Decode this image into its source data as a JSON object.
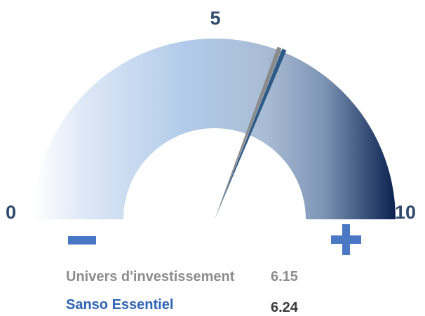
{
  "chart_data": {
    "type": "gauge",
    "min": 0,
    "max": 10,
    "ticks": [
      {
        "label": "0",
        "value": 0
      },
      {
        "label": "5",
        "value": 5
      },
      {
        "label": "10",
        "value": 10
      }
    ],
    "series": [
      {
        "name": "Univers d'investissement",
        "value": 6.15,
        "value_label": "6.15",
        "color": "#8a8a8a"
      },
      {
        "name": "Sanso Essentiel",
        "value": 6.24,
        "value_label": "6.24",
        "color": "#2f5a86"
      }
    ],
    "symbols": {
      "low": "minus-sign",
      "high": "plus-sign"
    },
    "colors": {
      "arc_light": "#ffffff",
      "arc_mid": "#a9c5e8",
      "arc_dark": "#0b2150",
      "symbol": "#4a78c4"
    }
  }
}
